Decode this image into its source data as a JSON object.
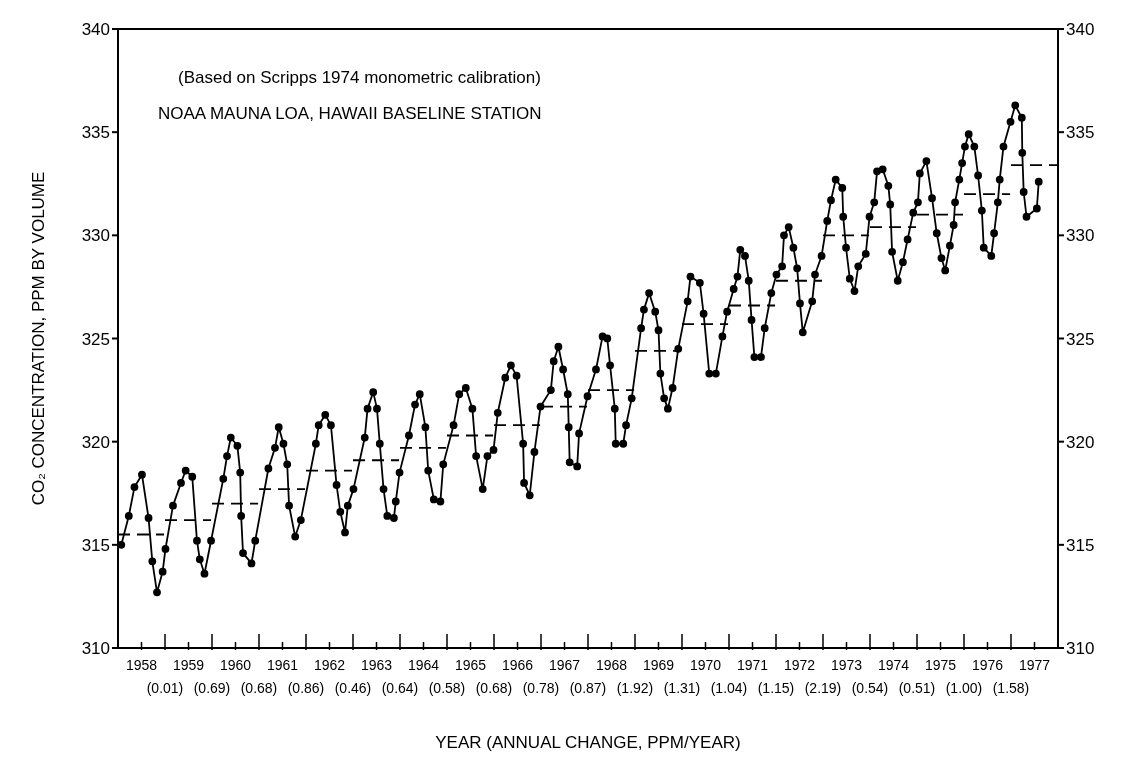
{
  "chart_data": {
    "type": "line",
    "xlabel": "YEAR (ANNUAL CHANGE, PPM/YEAR)",
    "ylabel": "CO₂ CONCENTRATION, PPM BY VOLUME",
    "annotations": [
      "(Based on Scripps 1974 monometric calibration)",
      "NOAA MAUNA LOA, HAWAII BASELINE STATION",
      "(0.01)",
      "(0.69)",
      "(0.68)",
      "(0.86)",
      "(0.46)",
      "(0.64)",
      "(0.58)",
      "(0.68)",
      "(0.78)",
      "(0.87)",
      "(1.92)",
      "(1.31)",
      "(1.04)",
      "(1.15)",
      "(2.19)",
      "(0.54)",
      "(0.51)",
      "(1.00)",
      "(1.58)"
    ],
    "xlim": [
      1958,
      1978
    ],
    "xticks": [
      {
        "value": 1958.5,
        "label": "1958"
      },
      {
        "value": 1959,
        "label": null
      },
      {
        "value": 1959.5,
        "label": "1959"
      },
      {
        "value": 1960,
        "label": null
      },
      {
        "value": 1960.5,
        "label": "1960"
      },
      {
        "value": 1961,
        "label": null
      },
      {
        "value": 1961.5,
        "label": "1961"
      },
      {
        "value": 1962,
        "label": null
      },
      {
        "value": 1962.5,
        "label": "1962"
      },
      {
        "value": 1963,
        "label": null
      },
      {
        "value": 1963.5,
        "label": "1963"
      },
      {
        "value": 1964,
        "label": null
      },
      {
        "value": 1964.5,
        "label": "1964"
      },
      {
        "value": 1965,
        "label": null
      },
      {
        "value": 1965.5,
        "label": "1965"
      },
      {
        "value": 1966,
        "label": null
      },
      {
        "value": 1966.5,
        "label": "1966"
      },
      {
        "value": 1967,
        "label": null
      },
      {
        "value": 1967.5,
        "label": "1967"
      },
      {
        "value": 1968,
        "label": null
      },
      {
        "value": 1968.5,
        "label": "1968"
      },
      {
        "value": 1969,
        "label": null
      },
      {
        "value": 1969.5,
        "label": "1969"
      },
      {
        "value": 1970,
        "label": null
      },
      {
        "value": 1970.5,
        "label": "1970"
      },
      {
        "value": 1971,
        "label": null
      },
      {
        "value": 1971.5,
        "label": "1971"
      },
      {
        "value": 1972,
        "label": null
      },
      {
        "value": 1972.5,
        "label": "1972"
      },
      {
        "value": 1973,
        "label": null
      },
      {
        "value": 1973.5,
        "label": "1973"
      },
      {
        "value": 1974,
        "label": null
      },
      {
        "value": 1974.5,
        "label": "1974"
      },
      {
        "value": 1975,
        "label": null
      },
      {
        "value": 1975.5,
        "label": "1975"
      },
      {
        "value": 1976,
        "label": null
      },
      {
        "value": 1976.5,
        "label": "1976"
      },
      {
        "value": 1977,
        "label": null
      },
      {
        "value": 1977.5,
        "label": "1977"
      }
    ],
    "ylim": [
      310,
      340
    ],
    "yticks": [
      310,
      315,
      320,
      325,
      330,
      335,
      340
    ],
    "y2lim": [
      310,
      340
    ],
    "y2ticks": [
      310,
      315,
      320,
      325,
      330,
      335,
      340
    ],
    "series": [
      {
        "color": "#000000",
        "marker": "circle",
        "line_style": "solid",
        "x": [
          1958.07,
          1958.23,
          1958.35,
          1958.51,
          1958.65,
          1958.73,
          1958.83,
          1958.95,
          1959.01,
          1959.17,
          1959.34,
          1959.44,
          1959.58,
          1959.68,
          1959.74,
          1959.84,
          1959.98,
          1960.24,
          1960.32,
          1960.4,
          1960.54,
          1960.6,
          1960.62,
          1960.66,
          1960.84,
          1960.92,
          1961.2,
          1961.34,
          1961.42,
          1961.52,
          1961.6,
          1961.64,
          1961.77,
          1961.89,
          1962.21,
          1962.27,
          1962.41,
          1962.53,
          1962.65,
          1962.73,
          1962.83,
          1962.89,
          1963.01,
          1963.25,
          1963.31,
          1963.43,
          1963.51,
          1963.57,
          1963.65,
          1963.73,
          1963.87,
          1963.91,
          1963.99,
          1964.19,
          1964.32,
          1964.42,
          1964.54,
          1964.6,
          1964.72,
          1964.86,
          1964.92,
          1965.14,
          1965.26,
          1965.4,
          1965.54,
          1965.62,
          1965.76,
          1965.86,
          1965.99,
          1966.08,
          1966.24,
          1966.36,
          1966.48,
          1966.62,
          1966.64,
          1966.76,
          1966.86,
          1966.99,
          1967.21,
          1967.27,
          1967.37,
          1967.47,
          1967.57,
          1967.59,
          1967.61,
          1967.77,
          1967.81,
          1967.99,
          1968.17,
          1968.31,
          1968.41,
          1968.47,
          1968.57,
          1968.59,
          1968.75,
          1968.81,
          1968.93,
          1969.13,
          1969.19,
          1969.3,
          1969.43,
          1969.5,
          1969.54,
          1969.62,
          1969.7,
          1969.8,
          1969.92,
          1970.12,
          1970.18,
          1970.38,
          1970.46,
          1970.58,
          1970.72,
          1970.86,
          1970.96,
          1971.1,
          1971.18,
          1971.24,
          1971.34,
          1971.42,
          1971.48,
          1971.54,
          1971.68,
          1971.76,
          1971.9,
          1972.01,
          1972.13,
          1972.17,
          1972.27,
          1972.37,
          1972.45,
          1972.51,
          1972.57,
          1972.77,
          1972.83,
          1972.97,
          1973.09,
          1973.17,
          1973.27,
          1973.41,
          1973.43,
          1973.49,
          1973.57,
          1973.67,
          1973.75,
          1973.91,
          1973.99,
          1974.09,
          1974.15,
          1974.27,
          1974.39,
          1974.43,
          1974.47,
          1974.59,
          1974.7,
          1974.8,
          1974.92,
          1975.02,
          1975.06,
          1975.2,
          1975.32,
          1975.42,
          1975.52,
          1975.6,
          1975.7,
          1975.78,
          1975.81,
          1975.9,
          1975.96,
          1976.02,
          1976.1,
          1976.22,
          1976.3,
          1976.38,
          1976.42,
          1976.58,
          1976.64,
          1976.72,
          1976.76,
          1976.84,
          1976.99,
          1977.09,
          1977.23,
          1977.24,
          1977.27,
          1977.33,
          1977.55,
          1977.59
        ],
        "values": [
          315.0,
          316.4,
          317.8,
          318.4,
          316.3,
          314.2,
          312.7,
          313.7,
          314.8,
          316.9,
          318.0,
          318.6,
          318.3,
          315.2,
          314.3,
          313.6,
          315.2,
          318.2,
          319.3,
          320.2,
          319.8,
          318.5,
          316.4,
          314.6,
          314.1,
          315.2,
          318.7,
          319.7,
          320.7,
          319.9,
          318.9,
          316.9,
          315.4,
          316.2,
          319.9,
          320.8,
          321.3,
          320.8,
          317.9,
          316.6,
          315.6,
          316.9,
          317.7,
          320.2,
          321.6,
          322.4,
          321.6,
          319.9,
          317.7,
          316.4,
          316.3,
          317.1,
          318.5,
          320.3,
          321.8,
          322.3,
          320.7,
          318.6,
          317.2,
          317.1,
          318.9,
          320.8,
          322.3,
          322.6,
          321.6,
          319.3,
          317.7,
          319.3,
          319.6,
          321.4,
          323.1,
          323.7,
          323.2,
          319.9,
          318.0,
          317.4,
          319.5,
          321.7,
          322.5,
          323.9,
          324.6,
          323.5,
          322.3,
          320.7,
          319.0,
          318.8,
          320.4,
          322.2,
          323.5,
          325.1,
          325.0,
          323.7,
          321.6,
          319.9,
          319.9,
          320.8,
          322.1,
          325.5,
          326.4,
          327.2,
          326.3,
          325.4,
          323.3,
          322.1,
          321.6,
          322.6,
          324.5,
          326.8,
          328.0,
          327.7,
          326.2,
          323.3,
          323.3,
          325.1,
          326.3,
          327.4,
          328.0,
          329.3,
          329.0,
          327.8,
          325.9,
          324.1,
          324.1,
          325.5,
          327.2,
          328.1,
          328.5,
          330.0,
          330.4,
          329.4,
          328.4,
          326.7,
          325.3,
          326.8,
          328.1,
          329.0,
          330.7,
          331.7,
          332.7,
          332.3,
          330.9,
          329.4,
          327.9,
          327.3,
          328.5,
          329.1,
          330.9,
          331.6,
          333.1,
          333.2,
          332.4,
          331.5,
          329.2,
          327.8,
          328.7,
          329.8,
          331.1,
          331.6,
          333.0,
          333.6,
          331.8,
          330.1,
          328.9,
          328.3,
          329.5,
          330.5,
          331.6,
          332.7,
          333.5,
          334.3,
          334.9,
          334.3,
          332.9,
          331.2,
          329.4,
          329.0,
          330.1,
          331.6,
          332.7,
          334.3,
          335.5,
          336.3,
          335.7,
          334.0,
          332.1,
          330.9,
          331.3,
          332.6
        ]
      },
      {
        "color": "#000000",
        "marker": "none",
        "line_style": "dashed",
        "x": [
          1958,
          1958.98,
          1958.99,
          1959,
          1959.98,
          1959.99,
          1960,
          1960.98,
          1960.99,
          1961,
          1961.98,
          1961.99,
          1962,
          1962.98,
          1962.99,
          1963,
          1963.98,
          1963.99,
          1964,
          1964.98,
          1964.99,
          1965,
          1965.98,
          1965.99,
          1966,
          1966.98,
          1966.99,
          1967,
          1967.98,
          1967.99,
          1968,
          1968.98,
          1968.99,
          1969,
          1969.98,
          1969.99,
          1970,
          1970.98,
          1970.99,
          1971,
          1971.98,
          1971.99,
          1972,
          1972.98,
          1972.99,
          1973,
          1973.98,
          1973.99,
          1974,
          1974.98,
          1974.99,
          1975,
          1975.98,
          1975.99,
          1976,
          1976.98,
          1976.99,
          1977,
          1978
        ],
        "values": [
          315.5,
          315.5,
          null,
          316.2,
          316.2,
          null,
          317.0,
          317.0,
          null,
          317.7,
          317.7,
          null,
          318.6,
          318.6,
          null,
          319.1,
          319.1,
          null,
          319.7,
          319.7,
          null,
          320.3,
          320.3,
          null,
          320.8,
          320.8,
          null,
          321.7,
          321.7,
          null,
          322.5,
          322.5,
          null,
          324.4,
          324.4,
          null,
          325.7,
          325.7,
          null,
          326.6,
          326.6,
          null,
          327.8,
          327.8,
          null,
          330.0,
          330.0,
          null,
          330.4,
          330.4,
          null,
          331.0,
          331.0,
          null,
          332.0,
          332.0,
          null,
          333.4,
          333.4
        ]
      }
    ]
  }
}
